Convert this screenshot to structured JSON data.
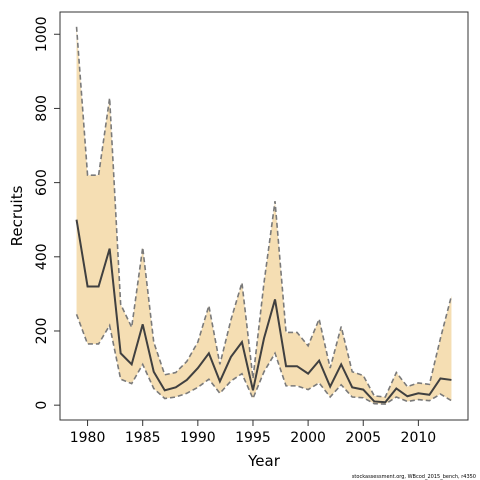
{
  "chart_data": {
    "type": "line",
    "xlabel": "Year",
    "ylabel": "Recruits",
    "xlim": [
      1977.5,
      2014.5
    ],
    "ylim": [
      -40,
      1060
    ],
    "x_ticks": [
      1980,
      1985,
      1990,
      1995,
      2000,
      2005,
      2010
    ],
    "y_ticks": [
      0,
      200,
      400,
      600,
      800,
      1000
    ],
    "colors": {
      "band": "#f5deb3",
      "central": "#404040",
      "bounds": "#7a7a7a"
    },
    "series": [
      {
        "role": "central",
        "x": [
          1979,
          1980,
          1981,
          1982,
          1983,
          1984,
          1985,
          1986,
          1987,
          1988,
          1989,
          1990,
          1991,
          1992,
          1993,
          1994,
          1995,
          1996,
          1997,
          1998,
          1999,
          2000,
          2001,
          2002,
          2003,
          2004,
          2005,
          2006,
          2007,
          2008,
          2009,
          2010,
          2011,
          2012,
          2013
        ],
        "values": [
          500,
          320,
          320,
          422,
          140,
          110,
          218,
          90,
          40,
          48,
          68,
          100,
          140,
          64,
          130,
          170,
          40,
          180,
          285,
          105,
          105,
          85,
          120,
          50,
          110,
          48,
          42,
          10,
          8,
          45,
          24,
          32,
          28,
          72,
          68
        ]
      },
      {
        "role": "upper",
        "x": [
          1979,
          1980,
          1981,
          1982,
          1983,
          1984,
          1985,
          1986,
          1987,
          1988,
          1989,
          1990,
          1991,
          1992,
          1993,
          1994,
          1995,
          1996,
          1997,
          1998,
          1999,
          2000,
          2001,
          2002,
          2003,
          2004,
          2005,
          2006,
          2007,
          2008,
          2009,
          2010,
          2011,
          2012,
          2013
        ],
        "values": [
          1020,
          620,
          620,
          828,
          272,
          210,
          425,
          170,
          82,
          88,
          118,
          170,
          268,
          110,
          230,
          330,
          72,
          330,
          550,
          196,
          196,
          160,
          232,
          100,
          212,
          90,
          80,
          25,
          22,
          88,
          50,
          60,
          56,
          180,
          295
        ]
      },
      {
        "role": "lower",
        "x": [
          1979,
          1980,
          1981,
          1982,
          1983,
          1984,
          1985,
          1986,
          1987,
          1988,
          1989,
          1990,
          1991,
          1992,
          1993,
          1994,
          1995,
          1996,
          1997,
          1998,
          1999,
          2000,
          2001,
          2002,
          2003,
          2004,
          2005,
          2006,
          2007,
          2008,
          2009,
          2010,
          2011,
          2012,
          2013
        ],
        "values": [
          245,
          165,
          165,
          215,
          70,
          58,
          110,
          45,
          18,
          22,
          32,
          48,
          70,
          32,
          65,
          85,
          18,
          90,
          140,
          52,
          52,
          42,
          60,
          22,
          55,
          22,
          20,
          4,
          3,
          22,
          10,
          15,
          12,
          30,
          12
        ]
      }
    ]
  },
  "footer": {
    "credit": "stockassessment.org,  WBcod_2015_bench, r4350"
  }
}
